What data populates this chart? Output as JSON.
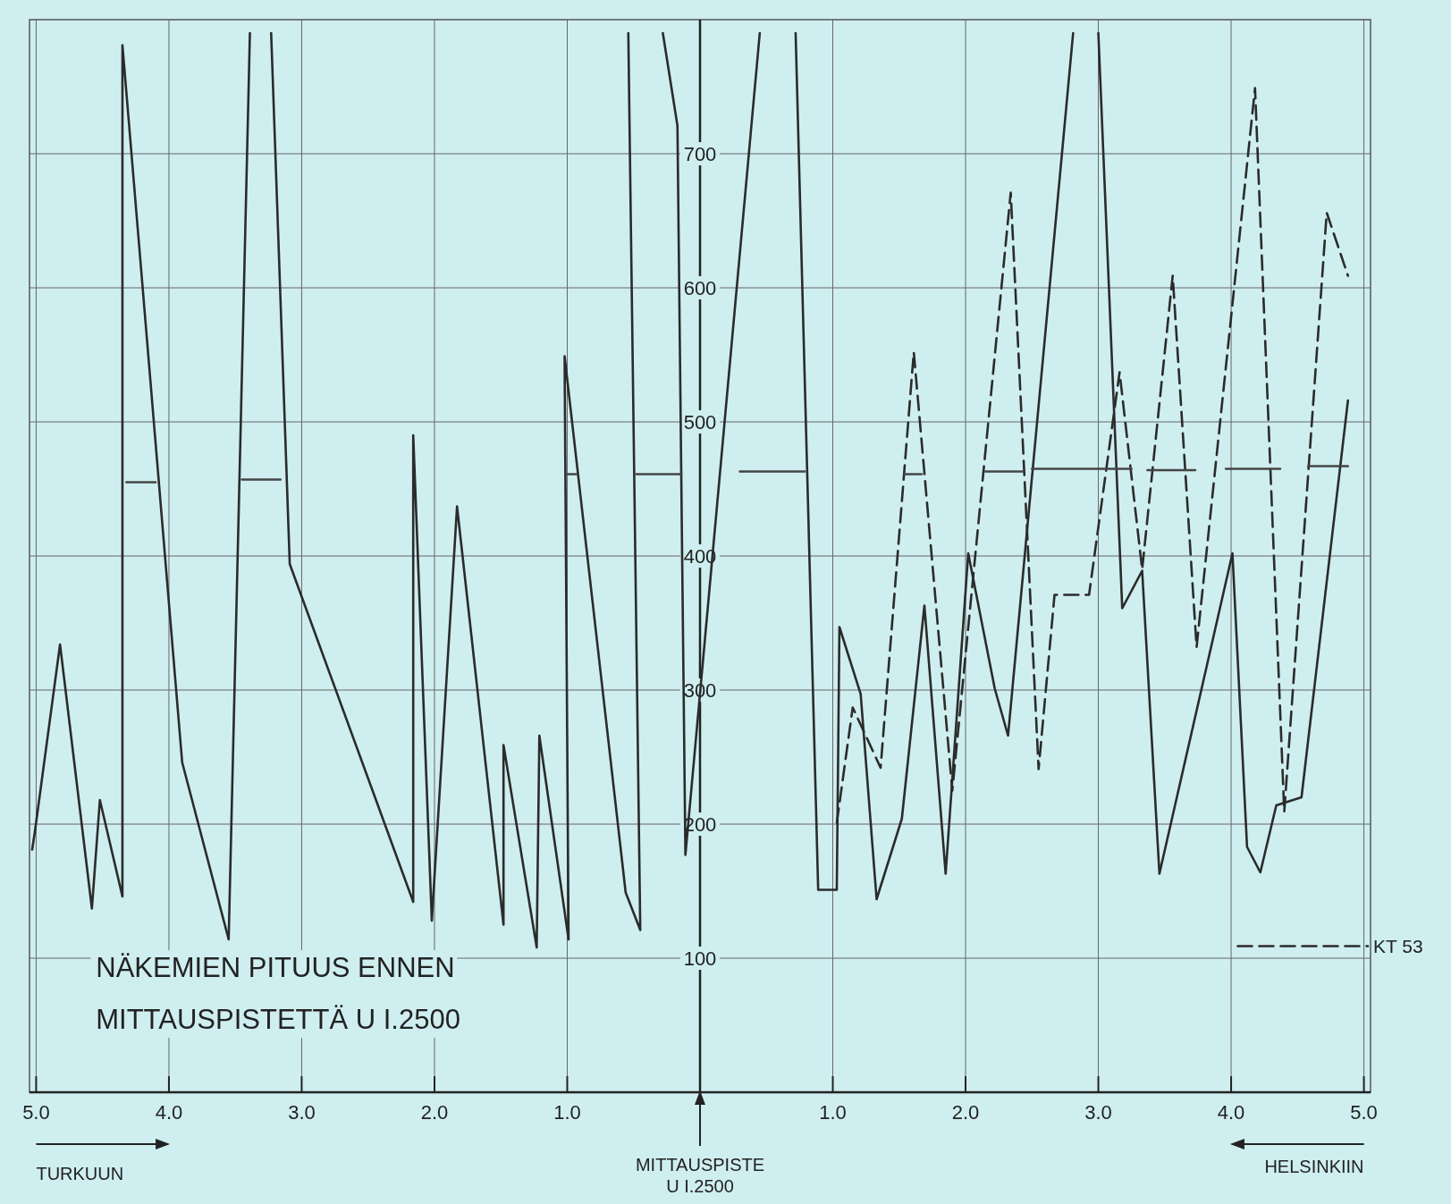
{
  "chart_data": {
    "type": "line",
    "xlim": [
      -5.05,
      5.05
    ],
    "ylim": [
      0,
      800
    ],
    "xticks": [
      {
        "value": -5,
        "label": "5.0"
      },
      {
        "value": -4,
        "label": "4.0"
      },
      {
        "value": -3,
        "label": "3.0"
      },
      {
        "value": -2,
        "label": "2.0"
      },
      {
        "value": -1,
        "label": "1.0"
      },
      {
        "value": 0,
        "label": null
      },
      {
        "value": 1,
        "label": "1.0"
      },
      {
        "value": 2,
        "label": "2.0"
      },
      {
        "value": 3,
        "label": "3.0"
      },
      {
        "value": 4,
        "label": "4.0"
      },
      {
        "value": 5,
        "label": "5.0"
      }
    ],
    "yticks": [
      100,
      200,
      300,
      400,
      500,
      600,
      700
    ],
    "grid": true,
    "series": [
      {
        "color": "#2b2b2b",
        "line_style": "solid",
        "x": [
          -5.03,
          -5.01,
          -4.82,
          -4.58,
          -4.52,
          -4.35,
          -4.35,
          -3.9,
          -3.55,
          -3.39,
          null,
          -3.23,
          -3.09,
          -2.16,
          -2.16,
          -2.02,
          -1.83,
          -1.48,
          -1.48,
          -1.23,
          -1.21,
          -0.99,
          -1.02,
          -0.56,
          -0.45,
          -0.54,
          null,
          -0.28,
          -0.17,
          -0.11,
          0.45,
          null,
          0.72,
          0.89,
          1.03,
          1.05,
          1.21,
          1.33,
          1.52,
          1.69,
          1.85,
          2.02,
          2.22,
          2.32,
          2.81,
          null,
          3.0,
          3.18,
          3.33,
          3.46,
          4.01,
          4.12,
          4.22,
          4.34,
          4.53,
          4.88
        ],
        "values": [
          181,
          194,
          334,
          137,
          218,
          146,
          781,
          246,
          114,
          790,
          null,
          790,
          394,
          142,
          490,
          128,
          437,
          125,
          259,
          108,
          266,
          114,
          549,
          149,
          121,
          790,
          null,
          790,
          721,
          177,
          790,
          null,
          790,
          151,
          151,
          347,
          297,
          144,
          204,
          363,
          163,
          402,
          301,
          266,
          790,
          null,
          790,
          361,
          389,
          163,
          402,
          183,
          164,
          214,
          220,
          516
        ]
      },
      {
        "color": "#2b2b2b",
        "line_style": "dashed",
        "x": [
          1.03,
          1.15,
          1.36,
          1.61,
          1.9,
          2.34,
          2.55,
          2.67,
          2.93,
          3.16,
          3.33,
          3.56,
          3.74,
          4.18,
          4.4,
          4.72,
          4.88
        ],
        "values": [
          201,
          287,
          242,
          552,
          225,
          671,
          241,
          371,
          371,
          537,
          390,
          609,
          332,
          749,
          209,
          656,
          609
        ]
      },
      {
        "color": "#454545",
        "line_style": "solid",
        "x": [
          -4.32,
          -4.1,
          null,
          -3.45,
          -3.16,
          null,
          -1.0,
          -0.93,
          null,
          -0.48,
          -0.14,
          null,
          0.3,
          0.79,
          null,
          1.54,
          1.67,
          null,
          2.15,
          2.43,
          null,
          2.5,
          3.25,
          null,
          3.37,
          3.73,
          null,
          3.96,
          4.37,
          null,
          4.58,
          4.88
        ],
        "values": [
          455,
          455,
          null,
          457,
          457,
          null,
          461,
          461,
          null,
          461,
          461,
          null,
          463,
          463,
          null,
          461,
          461,
          null,
          463,
          463,
          null,
          465,
          465,
          null,
          464,
          464,
          null,
          465,
          465,
          null,
          467,
          467
        ]
      },
      {
        "name": "KT 53",
        "color": "#2b2b2b",
        "line_style": "dashed",
        "x": [
          4.05,
          5.03
        ],
        "values": [
          109,
          109
        ]
      }
    ],
    "annotations": [
      "NÄKEMIEN PITUUS ENNEN\nMITTAUSPISTETTÄ U I.2500",
      "TURKUUN",
      "MITTAUSPISTE\nU I.2500",
      "HELSINKIIN"
    ]
  }
}
